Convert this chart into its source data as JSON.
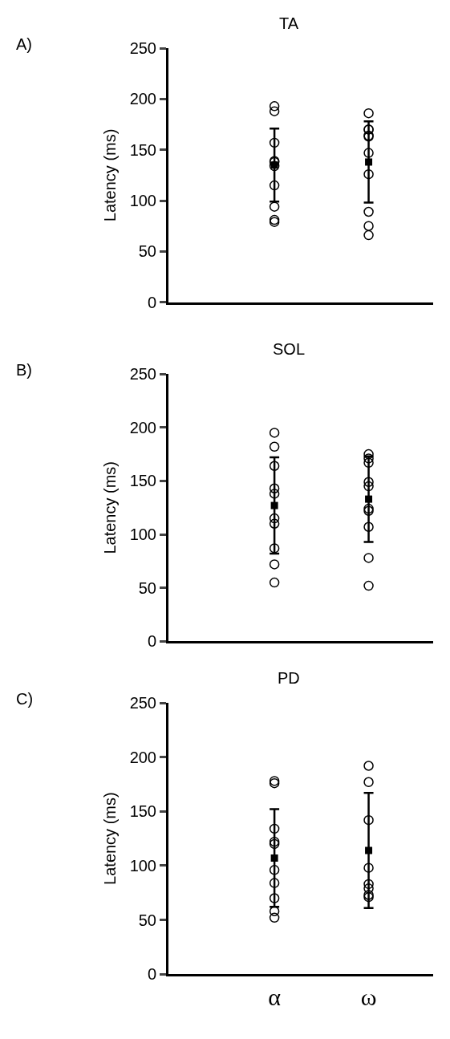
{
  "chart_data": [
    {
      "type": "scatter",
      "title": "TA",
      "ylabel": "Latency (ms)",
      "annotations": [
        "A)"
      ],
      "categories": [
        "α",
        "ω"
      ],
      "ylim": [
        0,
        250
      ],
      "yticks": [
        0,
        50,
        100,
        150,
        200,
        250
      ],
      "tick_labels": "y",
      "series": [
        {
          "color": "#000000",
          "marker": "circle",
          "x": [
            "α",
            "α",
            "α",
            "α",
            "α",
            "α",
            "α",
            "α",
            "α",
            "α"
          ],
          "values": [
            193,
            188,
            157,
            139,
            138,
            134,
            115,
            94,
            81,
            79
          ]
        },
        {
          "color": "#000000",
          "marker": "circle",
          "x": [
            "ω",
            "ω",
            "ω",
            "ω",
            "ω",
            "ω",
            "ω",
            "ω",
            "ω",
            "ω"
          ],
          "values": [
            186,
            170,
            170,
            164,
            163,
            147,
            126,
            89,
            75,
            66
          ]
        },
        {
          "color": "#000000",
          "x": [
            "α",
            "ω"
          ],
          "values": [
            135,
            138
          ],
          "errors": [
            36,
            40
          ]
        }
      ]
    },
    {
      "type": "scatter",
      "title": "SOL",
      "ylabel": "Latency (ms)",
      "annotations": [
        "B)"
      ],
      "categories": [
        "α",
        "ω"
      ],
      "ylim": [
        0,
        250
      ],
      "yticks": [
        0,
        50,
        100,
        150,
        200,
        250
      ],
      "tick_labels": "y",
      "series": [
        {
          "color": "#000000",
          "marker": "circle",
          "x": [
            "α",
            "α",
            "α",
            "α",
            "α",
            "α",
            "α",
            "α",
            "α",
            "α"
          ],
          "values": [
            195,
            182,
            164,
            143,
            138,
            115,
            110,
            87,
            72,
            55
          ]
        },
        {
          "color": "#000000",
          "marker": "circle",
          "x": [
            "ω",
            "ω",
            "ω",
            "ω",
            "ω",
            "ω",
            "ω",
            "ω",
            "ω",
            "ω"
          ],
          "values": [
            175,
            171,
            167,
            149,
            145,
            124,
            122,
            107,
            78,
            52
          ]
        },
        {
          "color": "#000000",
          "x": [
            "α",
            "ω"
          ],
          "values": [
            127,
            133
          ],
          "errors": [
            45,
            40
          ]
        }
      ]
    },
    {
      "type": "scatter",
      "title": "PD",
      "ylabel": "Latency (ms)",
      "annotations": [
        "C)"
      ],
      "categories": [
        "α",
        "ω"
      ],
      "ylim": [
        0,
        250
      ],
      "yticks": [
        0,
        50,
        100,
        150,
        200,
        250
      ],
      "series": [
        {
          "color": "#000000",
          "marker": "circle",
          "x": [
            "α",
            "α",
            "α",
            "α",
            "α",
            "α",
            "α",
            "α",
            "α",
            "α"
          ],
          "values": [
            178,
            176,
            134,
            122,
            120,
            96,
            84,
            70,
            58,
            52
          ]
        },
        {
          "color": "#000000",
          "marker": "circle",
          "x": [
            "ω",
            "ω",
            "ω",
            "ω",
            "ω",
            "ω",
            "ω",
            "ω"
          ],
          "values": [
            192,
            177,
            142,
            98,
            83,
            79,
            73,
            71
          ]
        },
        {
          "color": "#000000",
          "x": [
            "α",
            "ω"
          ],
          "values": [
            107,
            114
          ],
          "errors": [
            45,
            53
          ]
        }
      ]
    }
  ]
}
